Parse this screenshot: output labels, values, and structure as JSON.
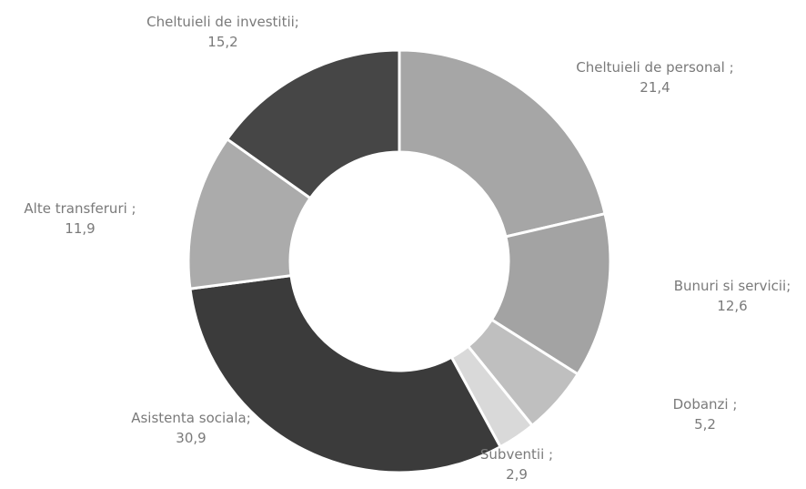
{
  "chart_data": {
    "type": "donut",
    "categories": [
      "Cheltuieli de personal ;",
      "Bunuri si servicii;",
      "Dobanzi ;",
      "Subventii ;",
      "Asistenta sociala;",
      "Alte transferuri ;",
      "Cheltuieli de investitii;"
    ],
    "values": [
      21.4,
      12.6,
      5.2,
      2.9,
      30.9,
      11.9,
      15.2
    ],
    "value_labels": [
      "21,4",
      "12,6",
      "5,2",
      "2,9",
      "30,9",
      "11,9",
      "15,2"
    ],
    "colors": [
      "#a6a6a6",
      "#a3a3a3",
      "#bfbfbf",
      "#d9d9d9",
      "#3b3b3b",
      "#ababab",
      "#464646"
    ]
  }
}
